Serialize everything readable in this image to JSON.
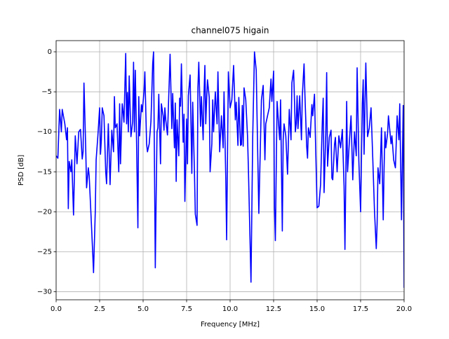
{
  "chart_data": {
    "type": "line",
    "title": "channel075 higain",
    "xlabel": "Frequency [MHz]",
    "ylabel": "PSD [dB]",
    "color": "#0000ff",
    "grid": true,
    "x": [
      0,
      0.1,
      0.2,
      0.3,
      0.35,
      0.5,
      0.6,
      0.65,
      0.7,
      0.75,
      0.85,
      0.9,
      1.0,
      1.1,
      1.2,
      1.3,
      1.4,
      1.5,
      1.55,
      1.6,
      1.7,
      1.75,
      1.85,
      1.9,
      2.0,
      2.1,
      2.15,
      2.25,
      2.3,
      2.4,
      2.5,
      2.55,
      2.6,
      2.65,
      2.75,
      2.85,
      2.9,
      3.0,
      3.1,
      3.2,
      3.3,
      3.35,
      3.4,
      3.5,
      3.6,
      3.65,
      3.7,
      3.8,
      3.85,
      3.9,
      4.0,
      4.05,
      4.1,
      4.15,
      4.2,
      4.3,
      4.4,
      4.45,
      4.5,
      4.55,
      4.6,
      4.7,
      4.75,
      4.8,
      4.9,
      4.95,
      5.05,
      5.1,
      5.2,
      5.25,
      5.35,
      5.45,
      5.55,
      5.6,
      5.7,
      5.75,
      5.8,
      5.85,
      5.9,
      6.0,
      6.05,
      6.15,
      6.2,
      6.25,
      6.3,
      6.4,
      6.5,
      6.55,
      6.65,
      6.7,
      6.8,
      6.85,
      6.9,
      6.95,
      7.05,
      7.1,
      7.15,
      7.2,
      7.3,
      7.35,
      7.4,
      7.5,
      7.55,
      7.6,
      7.7,
      7.75,
      7.8,
      7.85,
      7.95,
      8.0,
      8.1,
      8.15,
      8.2,
      8.3,
      8.35,
      8.45,
      8.5,
      8.55,
      8.6,
      8.65,
      8.7,
      8.8,
      8.85,
      8.95,
      9.0,
      9.05,
      9.1,
      9.15,
      9.25,
      9.3,
      9.4,
      9.5,
      9.6,
      9.65,
      9.75,
      9.8,
      9.9,
      10.0,
      10.1,
      10.2,
      10.3,
      10.35,
      10.45,
      10.5,
      10.6,
      10.65,
      10.7,
      10.75,
      10.8,
      10.9,
      11.0,
      11.05,
      11.2,
      11.3,
      11.4,
      11.5,
      11.65,
      11.8,
      11.9,
      12.0,
      12.05,
      12.15,
      12.25,
      12.35,
      12.4,
      12.5,
      12.55,
      12.6,
      12.7,
      12.8,
      12.85,
      12.9,
      13.0,
      13.05,
      13.1,
      13.2,
      13.3,
      13.4,
      13.5,
      13.55,
      13.65,
      13.75,
      13.8,
      13.85,
      13.9,
      14.0,
      14.1,
      14.15,
      14.25,
      14.3,
      14.4,
      14.45,
      14.5,
      14.6,
      14.7,
      14.75,
      14.85,
      14.9,
      15.0,
      15.1,
      15.2,
      15.3,
      15.35,
      15.4,
      15.5,
      15.55,
      15.6,
      15.7,
      15.8,
      15.85,
      15.9,
      16.0,
      16.05,
      16.15,
      16.25,
      16.35,
      16.45,
      16.55,
      16.6,
      16.7,
      16.75,
      16.85,
      16.95,
      17.05,
      17.15,
      17.25,
      17.3,
      17.4,
      17.5,
      17.6,
      17.65,
      17.7,
      17.75,
      17.8,
      17.9,
      18.0,
      18.1,
      18.2,
      18.3,
      18.4,
      18.45,
      18.5,
      18.6,
      18.7,
      18.8,
      18.85,
      18.9,
      18.95,
      19.05,
      19.1,
      19.25,
      19.3,
      19.4,
      19.5,
      19.6,
      19.7,
      19.75,
      19.85,
      19.9,
      19.95,
      20.0
    ],
    "values": [
      -13,
      -13.3,
      -7.2,
      -10,
      -7.2,
      -9,
      -11,
      -9.5,
      -19.6,
      -13.7,
      -15,
      -13.5,
      -20.4,
      -10.5,
      -14,
      -10,
      -9.7,
      -13.4,
      -12.5,
      -3.9,
      -12,
      -17,
      -14.5,
      -15.5,
      -20.2,
      -25,
      -27.6,
      -20,
      -13.5,
      -10.5,
      -7,
      -12.8,
      -11,
      -7,
      -8,
      -15,
      -16.5,
      -9,
      -16.6,
      -9.8,
      -12.5,
      -5.6,
      -9.5,
      -9,
      -15,
      -6.5,
      -14,
      -6.5,
      -7.5,
      -8.8,
      -0.2,
      -9,
      -5.1,
      -10,
      -3,
      -10.6,
      -8.7,
      -1.3,
      -10,
      -2.3,
      -8,
      -22,
      -5.6,
      -10.5,
      -6.6,
      -7.5,
      -5,
      -2.5,
      -11.5,
      -12.5,
      -11.5,
      -8.7,
      -1.5,
      0,
      -27,
      -18,
      -10,
      -9.5,
      -5.3,
      -14,
      -6.5,
      -8,
      -9.8,
      -7,
      -8.5,
      -10.4,
      -3.8,
      -0.3,
      -9.6,
      -5.2,
      -12,
      -6.4,
      -16.2,
      -8.5,
      -13,
      -5.8,
      -6.8,
      -1.5,
      -11.3,
      -7.8,
      -18.7,
      -8.4,
      -14,
      -5.5,
      -2.9,
      -8.8,
      -15.2,
      -6.3,
      -15,
      -20.3,
      -21.7,
      -4.5,
      -1.3,
      -9.3,
      -5.6,
      -11,
      -5.3,
      -1.7,
      -9,
      -6,
      -3.5,
      -5.7,
      -15,
      -11.5,
      -6,
      -10,
      -7.5,
      -5,
      -9,
      -2.5,
      -12.5,
      -8,
      -12,
      -5,
      -15.7,
      -23.5,
      -2.5,
      -7,
      -6,
      -1.7,
      -8.5,
      -6.3,
      -11.7,
      -5.7,
      -11.7,
      -11.6,
      -6.7,
      -11.8,
      -4.5,
      -6,
      -10.5,
      -14.5,
      -28.8,
      -10.5,
      0,
      -2.3,
      -20.2,
      -6,
      -4.2,
      -13.5,
      -9,
      -8,
      -7,
      -3.4,
      -6.2,
      -2.4,
      -19.5,
      -23.6,
      -6.2,
      -9.5,
      -11,
      -6,
      -22.4,
      -11,
      -9,
      -10.5,
      -15.3,
      -7.2,
      -11,
      -3.9,
      -2.3,
      -10,
      -9,
      -5.5,
      -9.6,
      -5.5,
      -11,
      -5.5,
      -1.5,
      -5.4,
      -11.8,
      -13.3,
      -9.5,
      -10.7,
      -6.6,
      -8,
      -5.3,
      -10.4,
      -19.5,
      -19.3,
      -16.6,
      -8.7,
      -5.8,
      -17.6,
      -10.1,
      -2.6,
      -14.3,
      -10.7,
      -9.8,
      -15.8,
      -16,
      -11.6,
      -10.7,
      -15,
      -10.5,
      -12,
      -9.7,
      -16.8,
      -24.7,
      -6.2,
      -15,
      -11.4,
      -8,
      -16,
      -10,
      -13,
      -2,
      -13.7,
      -20,
      -6.5,
      -3.5,
      -12.8,
      -6.5,
      -1.4,
      -10.6,
      -9.5,
      -7,
      -13.4,
      -20,
      -24.6,
      -21.5,
      -14.5,
      -16.5,
      -9.5,
      -21,
      -14.5,
      -10,
      -12,
      -10.2,
      -8,
      -11.5,
      -10.5,
      -13.5,
      -14.5,
      -8,
      -11,
      -6.5,
      -21,
      -13.5,
      -6.7,
      -29.5
    ],
    "xlim": [
      0,
      20
    ],
    "ylim": [
      -31,
      1.4
    ],
    "xticks": [
      {
        "value": 0,
        "label": "0.0"
      },
      2.5,
      {
        "value": 5,
        "label": "5.0"
      },
      7.5,
      {
        "value": 10,
        "label": "10.0"
      },
      12.5,
      {
        "value": 15,
        "label": "15.0"
      },
      17.5,
      {
        "value": 20,
        "label": "20.0"
      }
    ],
    "yticks": [
      {
        "value": -30,
        "label": "−30"
      },
      {
        "value": -25,
        "label": "−25"
      },
      {
        "value": -20,
        "label": "−20"
      },
      {
        "value": -15,
        "label": "−15"
      },
      {
        "value": -10,
        "label": "−10"
      },
      {
        "value": -5,
        "label": "−5"
      },
      0
    ]
  }
}
